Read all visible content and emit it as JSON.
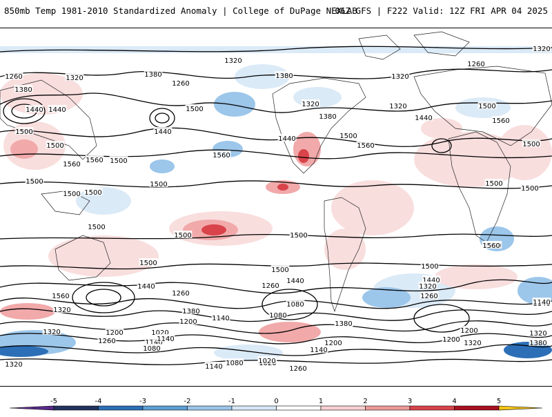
{
  "header": {
    "left_title": "850mb Temp 1981-2010 Standardized Anomaly | College of DuPage NEXLAB",
    "right_title": "06Z GFS | F222 Valid: 12Z FRI APR 04 2025"
  },
  "colorbar": {
    "ticks": [
      "-5",
      "-4",
      "-3",
      "-2",
      "-1",
      "0",
      "1",
      "2",
      "3",
      "4",
      "5"
    ],
    "colors": [
      "#5a2a8a",
      "#23315e",
      "#2c6fb7",
      "#5d9fd6",
      "#9cc6ea",
      "#d6e8f6",
      "#ffffff",
      "#f7d0d0",
      "#ee9a9a",
      "#d9434a",
      "#a8101f",
      "#6b0a12",
      "#f3c418"
    ]
  },
  "contour_labels": [
    "1320",
    "1260",
    "1320",
    "1380",
    "1320",
    "1260",
    "1320",
    "1380",
    "1320",
    "1260",
    "1440",
    "1500",
    "1440",
    "1320",
    "1380",
    "1440",
    "1500",
    "1560",
    "1440",
    "1500",
    "1560",
    "1500",
    "1380",
    "1440",
    "1500",
    "1560",
    "1500",
    "1560",
    "1500",
    "1500",
    "1560",
    "1500",
    "1500",
    "1500",
    "1500",
    "1500",
    "1500",
    "1500",
    "1500",
    "1500",
    "1560",
    "1500",
    "1440",
    "1500",
    "1440",
    "1500",
    "1440",
    "1380",
    "1560",
    "1260",
    "1320",
    "1380",
    "1260",
    "1320",
    "1260",
    "1200",
    "1140",
    "1080",
    "1020",
    "1200",
    "1140",
    "1080",
    "1380",
    "1260",
    "1320",
    "1140",
    "1320",
    "1200",
    "1080",
    "1020",
    "1260",
    "1200",
    "1140",
    "1020",
    "1140",
    "1080",
    "1020",
    "1200",
    "1140",
    "1320",
    "1380",
    "1320",
    "1140"
  ],
  "colors": {
    "warm_light": "#f9dede",
    "warm_mid": "#f1a9aa",
    "warm_strong": "#d9434a",
    "cool_light": "#dbeaf7",
    "cool_mid": "#9cc6ea",
    "cool_strong": "#2c6fb7",
    "contour": "#000000",
    "coast": "#222222"
  }
}
